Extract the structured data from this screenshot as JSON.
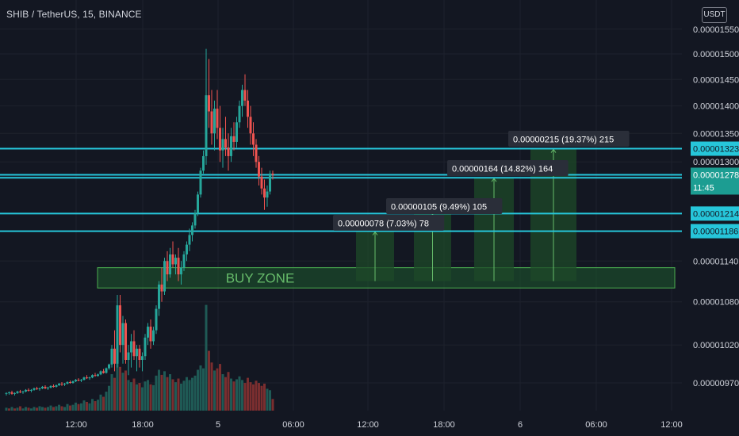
{
  "header": {
    "title": "SHIB / TetherUS, 15, BINANCE",
    "currency": "USDT"
  },
  "colors": {
    "background": "#131722",
    "grid": "#1e222d",
    "up": "#26a69a",
    "down": "#ef5350",
    "up_volume": "#1f5a55",
    "down_volume": "#7a2e2f",
    "hline": "#26c6da",
    "zone_fill": "#1e5a2e",
    "zone_border": "#4caf50",
    "zone_text": "#66bb6a",
    "target_fill": "#1d4a28",
    "label_bg": "#2a2e39"
  },
  "chart_data": {
    "type": "candlestick",
    "y_axis": {
      "min": 9.4e-06,
      "max": 1.56e-05,
      "scale": "log",
      "tick_labels": [
        "0.00001550",
        "0.00001500",
        "0.00001450",
        "0.00001400",
        "0.00001350",
        "0.00001300",
        "0.00001140",
        "0.00001080",
        "0.00001020",
        "0.00000970"
      ]
    },
    "x_axis": {
      "tick_labels": [
        "12:00",
        "18:00",
        "5",
        "06:00",
        "12:00",
        "18:00",
        "6",
        "06:00",
        "12:00"
      ]
    },
    "horizontal_levels": [
      1.323e-05,
      1.273e-05,
      1.214e-05,
      1.186e-05
    ],
    "price_labels": [
      "0.00001323",
      "0.00001273",
      "0.00001214",
      "0.00001186"
    ],
    "current_price": {
      "value": 1.278e-05,
      "label": "0.00001278",
      "countdown": "11:45"
    },
    "buy_zone": {
      "label": "BUY ZONE",
      "low": 1.1e-05,
      "high": 1.13e-05
    },
    "targets": [
      {
        "label": "0.00000078 (7.03%) 78",
        "from": 1.11e-05,
        "to": 1.186e-05
      },
      {
        "label": "0.00000105 (9.49%) 105",
        "from": 1.11e-05,
        "to": 1.214e-05
      },
      {
        "label": "0.00000164 (14.82%) 164",
        "from": 1.11e-05,
        "to": 1.273e-05
      },
      {
        "label": "0.00000215 (19.37%) 215",
        "from": 1.11e-05,
        "to": 1.323e-05
      }
    ],
    "candles": [
      [
        9.56,
        9.58,
        9.54,
        9.57
      ],
      [
        9.57,
        9.59,
        9.55,
        9.58
      ],
      [
        9.58,
        9.6,
        9.55,
        9.56
      ],
      [
        9.56,
        9.58,
        9.54,
        9.57
      ],
      [
        9.57,
        9.6,
        9.56,
        9.59
      ],
      [
        9.59,
        9.61,
        9.57,
        9.58
      ],
      [
        9.58,
        9.6,
        9.56,
        9.59
      ],
      [
        9.59,
        9.62,
        9.58,
        9.61
      ],
      [
        9.61,
        9.63,
        9.59,
        9.6
      ],
      [
        9.6,
        9.62,
        9.58,
        9.61
      ],
      [
        9.61,
        9.64,
        9.6,
        9.63
      ],
      [
        9.63,
        9.65,
        9.61,
        9.62
      ],
      [
        9.62,
        9.64,
        9.6,
        9.63
      ],
      [
        9.63,
        9.66,
        9.62,
        9.65
      ],
      [
        9.65,
        9.67,
        9.62,
        9.63
      ],
      [
        9.63,
        9.65,
        9.61,
        9.64
      ],
      [
        9.64,
        9.67,
        9.63,
        9.66
      ],
      [
        9.66,
        9.68,
        9.64,
        9.65
      ],
      [
        9.65,
        9.68,
        9.64,
        9.67
      ],
      [
        9.67,
        9.7,
        9.66,
        9.69
      ],
      [
        9.69,
        9.71,
        9.66,
        9.68
      ],
      [
        9.68,
        9.7,
        9.66,
        9.69
      ],
      [
        9.69,
        9.72,
        9.68,
        9.71
      ],
      [
        9.71,
        9.73,
        9.69,
        9.7
      ],
      [
        9.7,
        9.73,
        9.69,
        9.72
      ],
      [
        9.72,
        9.75,
        9.71,
        9.74
      ],
      [
        9.74,
        9.76,
        9.72,
        9.73
      ],
      [
        9.73,
        9.75,
        9.71,
        9.74
      ],
      [
        9.74,
        9.78,
        9.73,
        9.77
      ],
      [
        9.77,
        9.8,
        9.75,
        9.76
      ],
      [
        9.76,
        9.78,
        9.74,
        9.77
      ],
      [
        9.77,
        9.81,
        9.76,
        9.8
      ],
      [
        9.8,
        9.83,
        9.78,
        9.79
      ],
      [
        9.79,
        9.82,
        9.78,
        9.81
      ],
      [
        9.81,
        9.86,
        9.8,
        9.85
      ],
      [
        9.85,
        9.88,
        9.82,
        9.83
      ],
      [
        9.83,
        9.9,
        9.82,
        9.89
      ],
      [
        9.89,
        9.95,
        9.87,
        9.94
      ],
      [
        9.94,
        10.2,
        9.9,
        10.15
      ],
      [
        10.15,
        10.4,
        9.85,
        9.95
      ],
      [
        9.95,
        10.9,
        9.9,
        10.75
      ],
      [
        10.75,
        10.9,
        10.1,
        10.2
      ],
      [
        10.2,
        10.6,
        9.95,
        10.5
      ],
      [
        10.5,
        10.55,
        9.95,
        10.0
      ],
      [
        10.0,
        10.2,
        9.8,
        10.1
      ],
      [
        10.1,
        10.35,
        9.9,
        10.25
      ],
      [
        10.25,
        10.4,
        10.0,
        10.05
      ],
      [
        10.05,
        10.2,
        9.85,
        10.15
      ],
      [
        10.15,
        10.2,
        9.9,
        10.0
      ],
      [
        10.0,
        10.1,
        9.85,
        10.05
      ],
      [
        10.05,
        10.35,
        10.0,
        10.3
      ],
      [
        10.3,
        10.5,
        10.2,
        10.45
      ],
      [
        10.45,
        10.55,
        10.15,
        10.25
      ],
      [
        10.25,
        10.45,
        10.2,
        10.4
      ],
      [
        10.4,
        10.75,
        10.35,
        10.7
      ],
      [
        10.7,
        11.1,
        10.6,
        11.05
      ],
      [
        11.05,
        11.3,
        10.8,
        10.95
      ],
      [
        10.95,
        11.45,
        10.9,
        11.4
      ],
      [
        11.4,
        11.55,
        11.1,
        11.2
      ],
      [
        11.2,
        11.6,
        11.15,
        11.5
      ],
      [
        11.5,
        11.7,
        11.3,
        11.35
      ],
      [
        11.35,
        11.5,
        11.2,
        11.45
      ],
      [
        11.45,
        11.6,
        11.1,
        11.2
      ],
      [
        11.2,
        11.4,
        11.05,
        11.3
      ],
      [
        11.3,
        11.55,
        11.25,
        11.5
      ],
      [
        11.5,
        11.7,
        11.4,
        11.65
      ],
      [
        11.65,
        11.9,
        11.55,
        11.8
      ],
      [
        11.8,
        12.0,
        11.7,
        11.95
      ],
      [
        11.95,
        12.2,
        11.9,
        12.15
      ],
      [
        12.15,
        12.5,
        12.1,
        12.45
      ],
      [
        12.45,
        12.9,
        12.4,
        12.85
      ],
      [
        12.85,
        13.2,
        12.8,
        13.1
      ],
      [
        13.1,
        15.1,
        12.95,
        14.2
      ],
      [
        14.2,
        14.9,
        13.6,
        13.9
      ],
      [
        13.9,
        14.3,
        13.3,
        13.5
      ],
      [
        13.5,
        14.1,
        13.2,
        13.95
      ],
      [
        13.95,
        14.3,
        13.4,
        13.6
      ],
      [
        13.6,
        14.0,
        13.0,
        13.2
      ],
      [
        13.2,
        13.6,
        12.9,
        13.4
      ],
      [
        13.4,
        13.8,
        13.1,
        13.25
      ],
      [
        13.25,
        13.5,
        12.85,
        13.1
      ],
      [
        13.1,
        13.6,
        13.0,
        13.45
      ],
      [
        13.45,
        13.7,
        13.2,
        13.35
      ],
      [
        13.35,
        13.8,
        13.25,
        13.7
      ],
      [
        13.7,
        14.1,
        13.6,
        14.0
      ],
      [
        14.0,
        14.4,
        13.8,
        14.3
      ],
      [
        14.3,
        14.6,
        14.0,
        14.1
      ],
      [
        14.1,
        14.3,
        13.6,
        13.8
      ],
      [
        13.8,
        14.0,
        13.3,
        13.5
      ],
      [
        13.5,
        13.7,
        13.1,
        13.3
      ],
      [
        13.3,
        13.4,
        12.9,
        13.0
      ],
      [
        13.0,
        13.1,
        12.6,
        12.75
      ],
      [
        12.75,
        12.9,
        12.45,
        12.55
      ],
      [
        12.55,
        12.7,
        12.2,
        12.4
      ],
      [
        12.4,
        12.6,
        12.25,
        12.5
      ],
      [
        12.5,
        12.85,
        12.45,
        12.8
      ],
      [
        12.8,
        12.85,
        12.7,
        12.78
      ]
    ],
    "volumes": [
      [
        0.4,
        1
      ],
      [
        0.3,
        0
      ],
      [
        0.5,
        1
      ],
      [
        0.3,
        0
      ],
      [
        0.4,
        1
      ],
      [
        0.6,
        0
      ],
      [
        0.3,
        1
      ],
      [
        0.5,
        1
      ],
      [
        0.4,
        0
      ],
      [
        0.3,
        1
      ],
      [
        0.5,
        1
      ],
      [
        0.4,
        0
      ],
      [
        0.6,
        1
      ],
      [
        0.5,
        1
      ],
      [
        0.4,
        0
      ],
      [
        0.5,
        1
      ],
      [
        0.7,
        1
      ],
      [
        0.5,
        0
      ],
      [
        0.6,
        1
      ],
      [
        0.8,
        1
      ],
      [
        0.6,
        0
      ],
      [
        0.5,
        1
      ],
      [
        0.9,
        1
      ],
      [
        0.7,
        0
      ],
      [
        0.8,
        1
      ],
      [
        1.1,
        1
      ],
      [
        0.9,
        0
      ],
      [
        1.0,
        1
      ],
      [
        1.4,
        1
      ],
      [
        1.2,
        0
      ],
      [
        1.0,
        1
      ],
      [
        1.6,
        1
      ],
      [
        1.3,
        0
      ],
      [
        1.5,
        1
      ],
      [
        2.2,
        1
      ],
      [
        1.9,
        0
      ],
      [
        2.6,
        1
      ],
      [
        3.4,
        1
      ],
      [
        5.0,
        1
      ],
      [
        4.5,
        0
      ],
      [
        7.6,
        1
      ],
      [
        6.0,
        0
      ],
      [
        5.2,
        1
      ],
      [
        5.5,
        0
      ],
      [
        4.2,
        1
      ],
      [
        3.9,
        1
      ],
      [
        4.4,
        0
      ],
      [
        3.6,
        1
      ],
      [
        3.8,
        0
      ],
      [
        3.2,
        1
      ],
      [
        4.0,
        1
      ],
      [
        4.2,
        1
      ],
      [
        3.6,
        0
      ],
      [
        3.5,
        1
      ],
      [
        4.8,
        1
      ],
      [
        5.6,
        1
      ],
      [
        4.9,
        0
      ],
      [
        5.4,
        1
      ],
      [
        4.6,
        0
      ],
      [
        5.0,
        1
      ],
      [
        4.3,
        0
      ],
      [
        3.9,
        1
      ],
      [
        4.4,
        0
      ],
      [
        3.7,
        1
      ],
      [
        4.1,
        1
      ],
      [
        4.6,
        1
      ],
      [
        4.2,
        1
      ],
      [
        4.5,
        1
      ],
      [
        4.8,
        1
      ],
      [
        5.6,
        1
      ],
      [
        6.2,
        1
      ],
      [
        5.8,
        1
      ],
      [
        14.5,
        1
      ],
      [
        8.2,
        0
      ],
      [
        6.6,
        0
      ],
      [
        5.5,
        1
      ],
      [
        5.8,
        0
      ],
      [
        6.4,
        0
      ],
      [
        5.0,
        1
      ],
      [
        4.6,
        0
      ],
      [
        5.3,
        0
      ],
      [
        4.4,
        1
      ],
      [
        4.0,
        0
      ],
      [
        4.3,
        1
      ],
      [
        4.7,
        1
      ],
      [
        4.2,
        1
      ],
      [
        3.8,
        0
      ],
      [
        4.5,
        0
      ],
      [
        3.9,
        0
      ],
      [
        3.6,
        0
      ],
      [
        4.1,
        0
      ],
      [
        3.8,
        0
      ],
      [
        3.4,
        0
      ],
      [
        3.7,
        0
      ],
      [
        3.0,
        1
      ],
      [
        2.8,
        1
      ],
      [
        1.6,
        0
      ]
    ]
  }
}
